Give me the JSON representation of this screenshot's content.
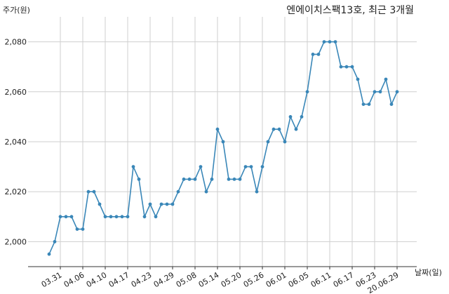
{
  "chart_data": {
    "type": "line",
    "title": "엔에이치스팩13호, 최근 3개월",
    "ylabel": "주가(원)",
    "xlabel": "날짜(일)",
    "ylim": [
      1990,
      2090
    ],
    "yticks": [
      2000,
      2020,
      2040,
      2060,
      2080
    ],
    "ytick_labels": [
      "2,000",
      "2,020",
      "2,040",
      "2,060",
      "2,080"
    ],
    "grid": true,
    "line_color": "#3a87b8",
    "xtick_labels": [
      "03.31",
      "04.06",
      "04.10",
      "04.17",
      "04.23",
      "04.29",
      "05.08",
      "05.14",
      "05.20",
      "05.26",
      "06.01",
      "06.05",
      "06.11",
      "06.17",
      "06.23",
      "20.06.29"
    ],
    "xtick_indices": [
      2,
      6,
      10,
      14,
      18,
      22,
      26,
      30,
      34,
      38,
      42,
      46,
      50,
      54,
      58,
      62
    ],
    "series": [
      {
        "values": [
          1995,
          2000,
          2010,
          2010,
          2010,
          2005,
          2005,
          2020,
          2020,
          2015,
          2010,
          2010,
          2010,
          2010,
          2010,
          2030,
          2025,
          2010,
          2015,
          2010,
          2015,
          2015,
          2015,
          2020,
          2025,
          2025,
          2025,
          2030,
          2020,
          2025,
          2045,
          2040,
          2025,
          2025,
          2025,
          2030,
          2030,
          2020,
          2030,
          2040,
          2045,
          2045,
          2040,
          2050,
          2045,
          2050,
          2060,
          2075,
          2075,
          2080,
          2080,
          2080,
          2070,
          2070,
          2070,
          2065,
          2055,
          2055,
          2060,
          2060,
          2065,
          2055,
          2060
        ]
      }
    ]
  }
}
